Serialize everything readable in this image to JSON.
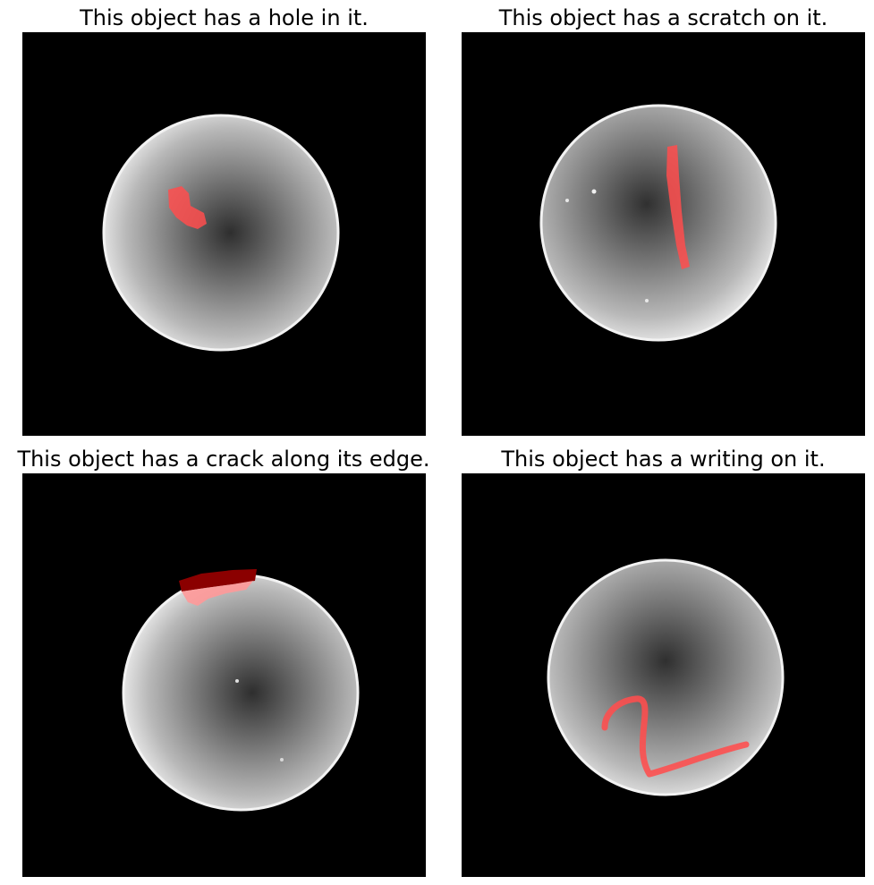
{
  "panels": [
    {
      "title": "This object has a hole in it.",
      "defect": "hole"
    },
    {
      "title": "This object has a scratch on it.",
      "defect": "scratch"
    },
    {
      "title": "This object has a crack along its edge.",
      "defect": "crack"
    },
    {
      "title": "This object has a writing on it.",
      "defect": "writing"
    }
  ],
  "colors": {
    "background": "#000000",
    "highlight": "#ff4d4d",
    "crack_dark": "#8b0000"
  }
}
